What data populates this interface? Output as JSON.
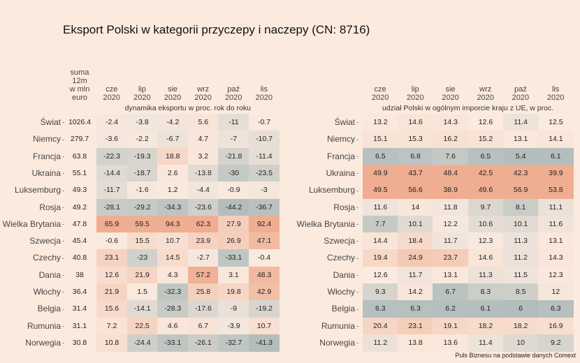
{
  "title": "Eksport Polski w kategorii przyczepy i naczepy (CN: 8716)",
  "source": "Puls Biznesu na podstawie danych Comext",
  "colors": {
    "background": "#fbebdf",
    "low": "#b3bebc",
    "mid": "#faeadf",
    "high": "#efae91"
  },
  "chart_data": [
    {
      "type": "heatmap",
      "title": "dynamika eksportu w proc. rok do roku",
      "sum_header": [
        "suma",
        "12m",
        "w mln",
        "euro"
      ],
      "columns": [
        [
          "cze",
          "2020"
        ],
        [
          "lip",
          "2020"
        ],
        [
          "sie",
          "2020"
        ],
        [
          "wrz",
          "2020"
        ],
        [
          "paź",
          "2020"
        ],
        [
          "lis",
          "2020"
        ]
      ],
      "rows": [
        "Świat",
        "Niemcy",
        "Francja",
        "Ukraina",
        "Luksemburg",
        "Rosja",
        "Wielka Brytania",
        "Szwecja",
        "Czechy",
        "Dania",
        "Włochy",
        "Belgia",
        "Rumunia",
        "Norwegia"
      ],
      "sums": [
        "1026.4",
        "279.7",
        "63.8",
        "55.1",
        "49.3",
        "49.2",
        "47.8",
        "45.4",
        "40.8",
        "38",
        "36.4",
        "31.4",
        "31.1",
        "30.8"
      ],
      "values": [
        [
          -2.4,
          -3.8,
          -4.2,
          5.6,
          -11,
          -0.7
        ],
        [
          -3.6,
          -2.2,
          -6.7,
          4.7,
          -7,
          -10.7
        ],
        [
          -22.3,
          -19.3,
          18.8,
          3.2,
          -21.8,
          -11.4
        ],
        [
          -14.4,
          -18.7,
          2.6,
          -13.8,
          -30,
          -23.5
        ],
        [
          -11.7,
          -1.6,
          1.2,
          -4.4,
          -0.9,
          -3
        ],
        [
          -28.1,
          -29.2,
          -34.3,
          -23.6,
          -44.2,
          -36.7
        ],
        [
          65.9,
          59.5,
          94.3,
          62.3,
          27.9,
          92.4
        ],
        [
          -0.6,
          15.5,
          10.7,
          23.9,
          26.9,
          47.1
        ],
        [
          23.1,
          -23,
          14.5,
          -2.7,
          -33.1,
          -0.4
        ],
        [
          12.6,
          21.9,
          4.3,
          57.2,
          3.1,
          48.3
        ],
        [
          21.9,
          1.5,
          -32.3,
          25.8,
          19.8,
          42.9
        ],
        [
          15.6,
          -14.1,
          -28.3,
          -17.6,
          -9,
          -19.2
        ],
        [
          7.2,
          22.5,
          4.6,
          6.7,
          -3.9,
          10.7
        ],
        [
          10.8,
          -24.4,
          -33.1,
          -26.1,
          -32.7,
          -41.3
        ]
      ],
      "scale": {
        "min": -40,
        "mid": 0,
        "max": 60
      }
    },
    {
      "type": "heatmap",
      "title": "udział Polski w ogólnym imporcie kraju z UE, w proc.",
      "columns": [
        [
          "cze",
          "2020"
        ],
        [
          "lip",
          "2020"
        ],
        [
          "sie",
          "2020"
        ],
        [
          "wrz",
          "2020"
        ],
        [
          "paź",
          "2020"
        ],
        [
          "lis",
          "2020"
        ]
      ],
      "rows": [
        "Świat",
        "Niemcy",
        "Francja",
        "Ukraina",
        "Luksemburg",
        "Rosja",
        "Wielka Brytania",
        "Szwecja",
        "Czechy",
        "Dania",
        "Włochy",
        "Belgia",
        "Rumunia",
        "Norwegia"
      ],
      "values": [
        [
          13.2,
          14.6,
          14.3,
          12.6,
          11.4,
          12.5
        ],
        [
          15.1,
          15.3,
          16.2,
          15.2,
          13.1,
          14.1
        ],
        [
          6.5,
          6.8,
          7.6,
          6.5,
          5.4,
          6.1
        ],
        [
          49.9,
          43.7,
          48.4,
          42.5,
          42.3,
          39.9
        ],
        [
          49.5,
          56.6,
          38.9,
          49.6,
          56.9,
          53.8
        ],
        [
          11.6,
          14,
          11.8,
          9.7,
          8.1,
          11.1
        ],
        [
          7.7,
          10.1,
          12.2,
          10.6,
          10.1,
          11.6
        ],
        [
          14.4,
          18.4,
          11.7,
          12.3,
          11.3,
          13.1
        ],
        [
          19.4,
          24.9,
          23.7,
          14.6,
          11.2,
          14.3
        ],
        [
          12.6,
          11.7,
          13.1,
          11.3,
          11.5,
          12.3
        ],
        [
          9.3,
          14.2,
          6.7,
          8.3,
          8.5,
          12
        ],
        [
          6.3,
          6.3,
          6.2,
          6.1,
          6,
          6.3
        ],
        [
          20.4,
          23.1,
          19.1,
          18.2,
          18.2,
          16.9
        ],
        [
          11.2,
          13.8,
          13.6,
          11.4,
          10,
          9.2
        ]
      ],
      "scale": {
        "min": 6,
        "mid": 12.5,
        "max": 35
      }
    }
  ]
}
